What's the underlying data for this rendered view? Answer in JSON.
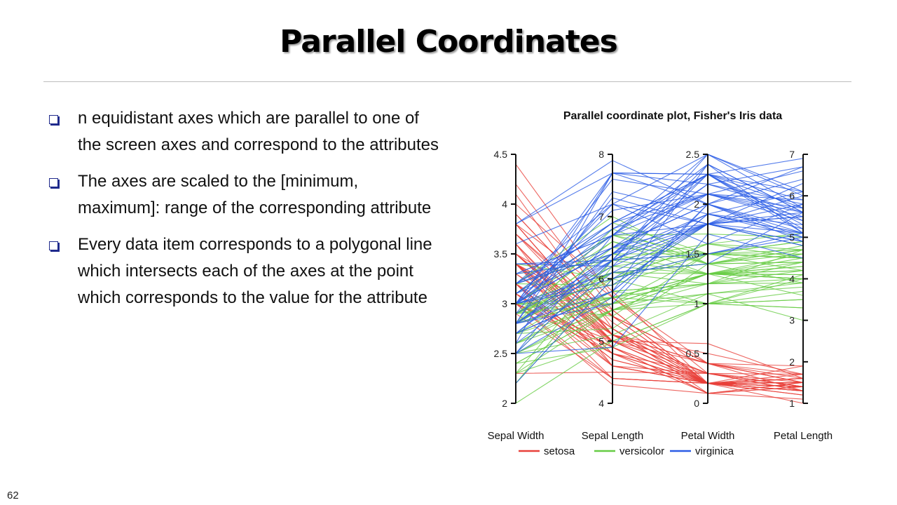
{
  "slide": {
    "title": "Parallel Coordinates",
    "page_number": "62",
    "bullets": [
      "n equidistant axes which are parallel to one of the screen axes and correspond to the attributes",
      "The axes are scaled to the [minimum, maximum]: range of the corresponding attribute",
      "Every data item corresponds to a polygonal line which intersects each of the axes at the point which corresponds to the value for the attribute"
    ]
  },
  "chart_data": {
    "type": "parallel_coordinates",
    "title": "Parallel coordinate plot, Fisher's Iris data",
    "axes": [
      {
        "name": "Sepal Width",
        "range": [
          2,
          4.5
        ],
        "ticks": [
          2,
          2.5,
          3,
          3.5,
          4,
          4.5
        ],
        "tick_labels": [
          "2",
          "2.5",
          "3",
          "3.5",
          "4",
          "4.5"
        ],
        "tick_side": "left"
      },
      {
        "name": "Sepal Length",
        "range": [
          4,
          8
        ],
        "ticks": [
          4,
          5,
          6,
          7,
          8
        ],
        "tick_labels": [
          "4",
          "5",
          "6",
          "7",
          "8"
        ],
        "tick_side": "left"
      },
      {
        "name": "Petal Width",
        "range": [
          0,
          2.5
        ],
        "ticks": [
          0,
          0.5,
          1,
          1.5,
          2,
          2.5
        ],
        "tick_labels": [
          "0",
          "0.5",
          "1",
          "1.5",
          "2",
          "2.5"
        ],
        "tick_side": "left"
      },
      {
        "name": "Petal Length",
        "range": [
          1,
          7
        ],
        "ticks": [
          1,
          2,
          3,
          4,
          5,
          6,
          7
        ],
        "tick_labels": [
          "1",
          "2",
          "3",
          "4",
          "5",
          "6",
          "7"
        ],
        "tick_side": "right"
      }
    ],
    "legend": {
      "position": "bottom",
      "entries": [
        {
          "name": "setosa",
          "color": "#e8403a"
        },
        {
          "name": "versicolor",
          "color": "#66cc44"
        },
        {
          "name": "virginica",
          "color": "#2b5ce6"
        }
      ]
    },
    "series": [
      {
        "name": "setosa",
        "color": "#e8403a",
        "lines": [
          [
            3.5,
            5.1,
            0.2,
            1.4
          ],
          [
            3.0,
            4.9,
            0.2,
            1.4
          ],
          [
            3.2,
            4.7,
            0.2,
            1.3
          ],
          [
            3.1,
            4.6,
            0.2,
            1.5
          ],
          [
            3.6,
            5.0,
            0.2,
            1.4
          ],
          [
            3.9,
            5.4,
            0.4,
            1.7
          ],
          [
            3.4,
            4.6,
            0.3,
            1.4
          ],
          [
            3.4,
            5.0,
            0.2,
            1.5
          ],
          [
            2.9,
            4.4,
            0.2,
            1.4
          ],
          [
            3.1,
            4.9,
            0.1,
            1.5
          ],
          [
            3.7,
            5.4,
            0.2,
            1.5
          ],
          [
            3.4,
            4.8,
            0.2,
            1.6
          ],
          [
            3.0,
            4.8,
            0.1,
            1.4
          ],
          [
            3.0,
            4.3,
            0.1,
            1.1
          ],
          [
            4.0,
            5.8,
            0.2,
            1.2
          ],
          [
            4.4,
            5.7,
            0.4,
            1.5
          ],
          [
            3.9,
            5.4,
            0.4,
            1.3
          ],
          [
            3.5,
            5.1,
            0.3,
            1.4
          ],
          [
            3.8,
            5.7,
            0.3,
            1.7
          ],
          [
            3.8,
            5.1,
            0.3,
            1.5
          ],
          [
            3.4,
            5.4,
            0.2,
            1.7
          ],
          [
            3.7,
            5.1,
            0.4,
            1.5
          ],
          [
            3.6,
            4.6,
            0.2,
            1.0
          ],
          [
            3.3,
            5.1,
            0.5,
            1.7
          ],
          [
            3.4,
            4.8,
            0.2,
            1.9
          ],
          [
            3.0,
            5.0,
            0.2,
            1.6
          ],
          [
            3.4,
            5.0,
            0.4,
            1.6
          ],
          [
            3.5,
            5.2,
            0.2,
            1.5
          ],
          [
            3.4,
            5.2,
            0.2,
            1.4
          ],
          [
            3.2,
            4.7,
            0.2,
            1.6
          ],
          [
            3.1,
            4.8,
            0.2,
            1.6
          ],
          [
            3.4,
            5.4,
            0.4,
            1.5
          ],
          [
            4.1,
            5.2,
            0.1,
            1.5
          ],
          [
            4.2,
            5.5,
            0.2,
            1.4
          ],
          [
            3.1,
            4.9,
            0.2,
            1.5
          ],
          [
            3.2,
            5.0,
            0.2,
            1.2
          ],
          [
            3.5,
            5.5,
            0.2,
            1.3
          ],
          [
            3.6,
            4.9,
            0.1,
            1.4
          ],
          [
            3.0,
            4.4,
            0.2,
            1.3
          ],
          [
            3.4,
            5.1,
            0.2,
            1.5
          ],
          [
            3.5,
            5.0,
            0.3,
            1.3
          ],
          [
            2.3,
            4.5,
            0.3,
            1.3
          ],
          [
            3.2,
            4.4,
            0.2,
            1.3
          ],
          [
            3.5,
            5.0,
            0.6,
            1.6
          ],
          [
            3.8,
            5.1,
            0.4,
            1.9
          ],
          [
            3.0,
            4.8,
            0.3,
            1.4
          ],
          [
            3.8,
            5.1,
            0.2,
            1.6
          ],
          [
            3.2,
            4.6,
            0.2,
            1.4
          ],
          [
            3.7,
            5.3,
            0.2,
            1.5
          ],
          [
            3.3,
            5.0,
            0.2,
            1.4
          ]
        ]
      },
      {
        "name": "versicolor",
        "color": "#66cc44",
        "lines": [
          [
            3.2,
            7.0,
            1.4,
            4.7
          ],
          [
            3.2,
            6.4,
            1.5,
            4.5
          ],
          [
            3.1,
            6.9,
            1.5,
            4.9
          ],
          [
            2.3,
            5.5,
            1.3,
            4.0
          ],
          [
            2.8,
            6.5,
            1.5,
            4.6
          ],
          [
            2.8,
            5.7,
            1.3,
            4.5
          ],
          [
            3.3,
            6.3,
            1.6,
            4.7
          ],
          [
            2.4,
            4.9,
            1.0,
            3.3
          ],
          [
            2.9,
            6.6,
            1.3,
            4.6
          ],
          [
            2.7,
            5.2,
            1.4,
            3.9
          ],
          [
            2.0,
            5.0,
            1.0,
            3.5
          ],
          [
            3.0,
            5.9,
            1.5,
            4.2
          ],
          [
            2.2,
            6.0,
            1.0,
            4.0
          ],
          [
            2.9,
            6.1,
            1.4,
            4.7
          ],
          [
            2.9,
            5.6,
            1.3,
            3.6
          ],
          [
            3.1,
            6.7,
            1.4,
            4.4
          ],
          [
            3.0,
            5.6,
            1.5,
            4.5
          ],
          [
            2.7,
            5.8,
            1.0,
            4.1
          ],
          [
            2.2,
            6.2,
            1.5,
            4.5
          ],
          [
            2.5,
            5.6,
            1.1,
            3.9
          ],
          [
            3.2,
            5.9,
            1.8,
            4.8
          ],
          [
            2.8,
            6.1,
            1.3,
            4.0
          ],
          [
            2.5,
            6.3,
            1.5,
            4.9
          ],
          [
            2.8,
            6.1,
            1.2,
            4.7
          ],
          [
            2.9,
            6.4,
            1.3,
            4.3
          ],
          [
            3.0,
            6.6,
            1.4,
            4.4
          ],
          [
            2.8,
            6.8,
            1.4,
            4.8
          ],
          [
            3.0,
            6.7,
            1.7,
            5.0
          ],
          [
            2.9,
            6.0,
            1.5,
            4.5
          ],
          [
            2.6,
            5.7,
            1.0,
            3.5
          ],
          [
            2.4,
            5.5,
            1.1,
            3.8
          ],
          [
            2.4,
            5.5,
            1.0,
            3.7
          ],
          [
            2.7,
            5.8,
            1.2,
            3.9
          ],
          [
            2.7,
            6.0,
            1.6,
            5.1
          ],
          [
            3.0,
            5.4,
            1.5,
            4.5
          ],
          [
            3.4,
            6.0,
            1.6,
            4.5
          ],
          [
            3.1,
            6.7,
            1.5,
            4.7
          ],
          [
            2.3,
            6.3,
            1.3,
            4.4
          ],
          [
            3.0,
            5.6,
            1.3,
            4.1
          ],
          [
            2.5,
            5.5,
            1.3,
            4.0
          ],
          [
            2.6,
            5.5,
            1.2,
            4.4
          ],
          [
            3.0,
            6.1,
            1.4,
            4.6
          ],
          [
            2.6,
            5.8,
            1.2,
            4.0
          ],
          [
            2.3,
            5.0,
            1.0,
            3.3
          ],
          [
            2.7,
            5.6,
            1.3,
            4.2
          ],
          [
            3.0,
            5.7,
            1.2,
            4.2
          ],
          [
            2.9,
            5.7,
            1.3,
            4.2
          ],
          [
            2.9,
            6.2,
            1.3,
            4.3
          ],
          [
            2.5,
            5.1,
            1.1,
            3.0
          ],
          [
            2.8,
            5.7,
            1.3,
            4.1
          ]
        ]
      },
      {
        "name": "virginica",
        "color": "#2b5ce6",
        "lines": [
          [
            3.3,
            6.3,
            2.5,
            6.0
          ],
          [
            2.7,
            5.8,
            1.9,
            5.1
          ],
          [
            3.0,
            7.1,
            2.1,
            5.9
          ],
          [
            2.9,
            6.3,
            1.8,
            5.6
          ],
          [
            3.0,
            6.5,
            2.2,
            5.8
          ],
          [
            3.0,
            7.6,
            2.1,
            6.6
          ],
          [
            2.5,
            4.9,
            1.7,
            4.5
          ],
          [
            2.9,
            7.3,
            1.8,
            6.3
          ],
          [
            2.5,
            6.7,
            1.8,
            5.8
          ],
          [
            3.6,
            7.2,
            2.5,
            6.1
          ],
          [
            3.2,
            6.5,
            2.0,
            5.1
          ],
          [
            2.7,
            6.4,
            1.9,
            5.3
          ],
          [
            3.0,
            6.8,
            2.1,
            5.5
          ],
          [
            2.5,
            5.7,
            2.0,
            5.0
          ],
          [
            2.8,
            5.8,
            2.4,
            5.1
          ],
          [
            3.2,
            6.4,
            2.3,
            5.3
          ],
          [
            3.0,
            6.5,
            1.8,
            5.5
          ],
          [
            3.8,
            7.7,
            2.2,
            6.7
          ],
          [
            2.6,
            7.7,
            2.3,
            6.9
          ],
          [
            2.2,
            6.0,
            1.5,
            5.0
          ],
          [
            3.2,
            6.9,
            2.3,
            5.7
          ],
          [
            2.8,
            5.6,
            2.0,
            4.9
          ],
          [
            2.8,
            7.7,
            2.0,
            6.7
          ],
          [
            2.7,
            6.3,
            1.8,
            4.9
          ],
          [
            3.3,
            6.7,
            2.1,
            5.7
          ],
          [
            3.2,
            7.2,
            1.8,
            6.0
          ],
          [
            2.8,
            6.2,
            1.8,
            4.8
          ],
          [
            3.0,
            6.1,
            1.8,
            4.9
          ],
          [
            2.8,
            6.4,
            2.1,
            5.6
          ],
          [
            3.0,
            7.2,
            1.6,
            5.8
          ],
          [
            2.8,
            7.4,
            1.9,
            6.1
          ],
          [
            3.8,
            7.9,
            2.0,
            6.4
          ],
          [
            2.8,
            6.4,
            2.2,
            5.6
          ],
          [
            2.8,
            6.3,
            1.5,
            5.1
          ],
          [
            2.6,
            6.1,
            1.4,
            5.6
          ],
          [
            3.0,
            7.7,
            2.3,
            6.1
          ],
          [
            3.4,
            6.3,
            2.4,
            5.6
          ],
          [
            3.1,
            6.4,
            1.8,
            5.5
          ],
          [
            3.0,
            6.0,
            1.8,
            4.8
          ],
          [
            3.1,
            6.9,
            2.1,
            5.4
          ],
          [
            3.1,
            6.7,
            2.4,
            5.6
          ],
          [
            3.1,
            6.9,
            2.3,
            5.1
          ],
          [
            2.7,
            5.8,
            1.9,
            5.1
          ],
          [
            3.2,
            6.8,
            2.3,
            5.9
          ],
          [
            3.3,
            6.7,
            2.5,
            5.7
          ],
          [
            3.0,
            6.7,
            2.3,
            5.2
          ],
          [
            2.5,
            6.3,
            1.9,
            5.0
          ],
          [
            3.0,
            6.5,
            2.0,
            5.2
          ],
          [
            3.4,
            6.2,
            2.3,
            5.4
          ],
          [
            3.0,
            5.9,
            1.8,
            5.1
          ]
        ]
      }
    ]
  }
}
